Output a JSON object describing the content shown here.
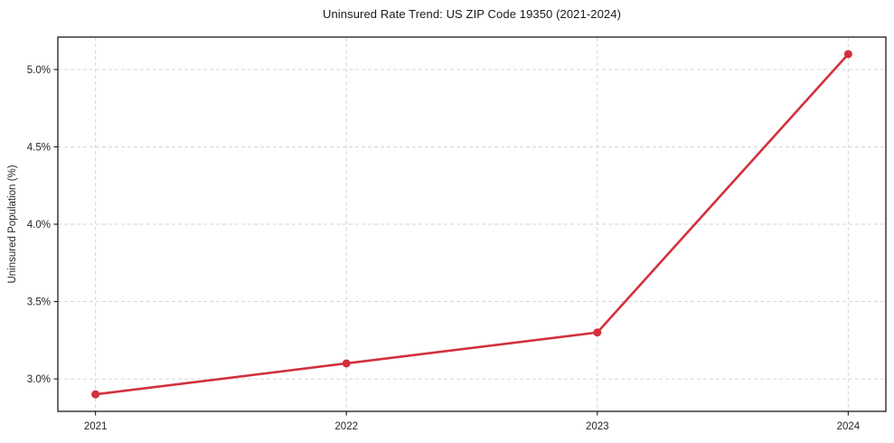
{
  "chart_data": {
    "type": "line",
    "title": "Uninsured Rate Trend: US ZIP Code 19350 (2021-2024)",
    "xlabel": "",
    "ylabel": "Uninsured Population (%)",
    "x": [
      2021,
      2022,
      2023,
      2024
    ],
    "x_tick_labels": [
      "2021",
      "2022",
      "2023",
      "2024"
    ],
    "values": [
      2.9,
      3.1,
      3.3,
      5.1
    ],
    "y_ticks": [
      3.0,
      3.5,
      4.0,
      4.5,
      5.0
    ],
    "y_tick_labels": [
      "3.0%",
      "3.5%",
      "4.0%",
      "4.5%",
      "5.0%"
    ],
    "xlim": [
      2020.85,
      2024.15
    ],
    "ylim": [
      2.79,
      5.21
    ],
    "grid": true,
    "grid_style": "dashed",
    "legend": false,
    "marker": "circle",
    "colors": {
      "line": "#d2303e",
      "marker": "#d2303e",
      "grid": "#d6d6d6",
      "spine": "#1a1a1a",
      "text": "#262626",
      "background": "#ffffff"
    }
  }
}
